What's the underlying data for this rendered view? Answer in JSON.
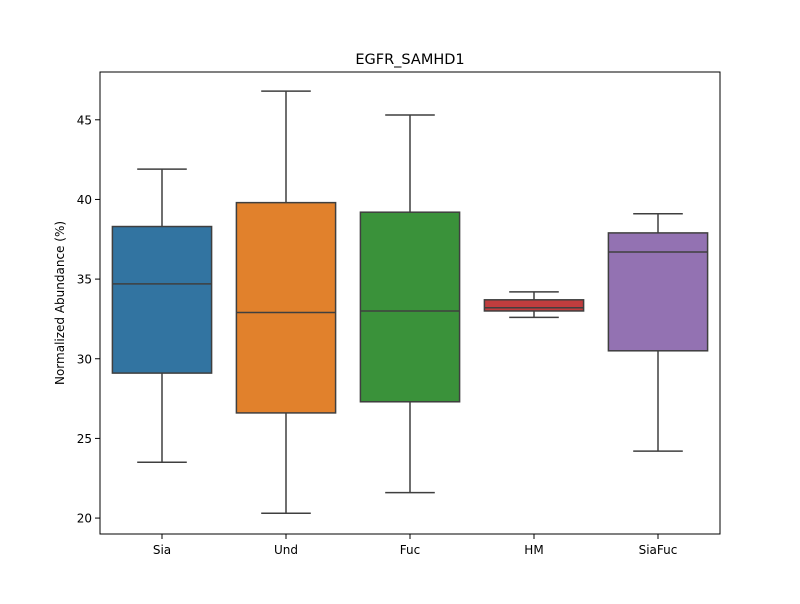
{
  "chart_data": {
    "type": "box",
    "title": "EGFR_SAMHD1",
    "xlabel": "",
    "ylabel": "Normalized Abundance (%)",
    "ylim": [
      19.0,
      48.0
    ],
    "yticks": [
      20,
      25,
      30,
      35,
      40,
      45
    ],
    "grid": false,
    "categories": [
      "Sia",
      "Und",
      "Fuc",
      "HM",
      "SiaFuc"
    ],
    "boxes": [
      {
        "category": "Sia",
        "whisker_low": 23.5,
        "q1": 29.1,
        "median": 34.7,
        "q3": 38.3,
        "whisker_high": 41.9,
        "color": "#3274a1"
      },
      {
        "category": "Und",
        "whisker_low": 20.3,
        "q1": 26.6,
        "median": 32.9,
        "q3": 39.8,
        "whisker_high": 46.8,
        "color": "#e1812c"
      },
      {
        "category": "Fuc",
        "whisker_low": 21.6,
        "q1": 27.3,
        "median": 33.0,
        "q3": 39.2,
        "whisker_high": 45.3,
        "color": "#3a923a"
      },
      {
        "category": "HM",
        "whisker_low": 32.6,
        "q1": 33.0,
        "median": 33.2,
        "q3": 33.7,
        "whisker_high": 34.2,
        "color": "#c03d3e"
      },
      {
        "category": "SiaFuc",
        "whisker_low": 24.2,
        "q1": 30.5,
        "median": 36.7,
        "q3": 37.9,
        "whisker_high": 39.1,
        "color": "#9372b2"
      }
    ]
  }
}
